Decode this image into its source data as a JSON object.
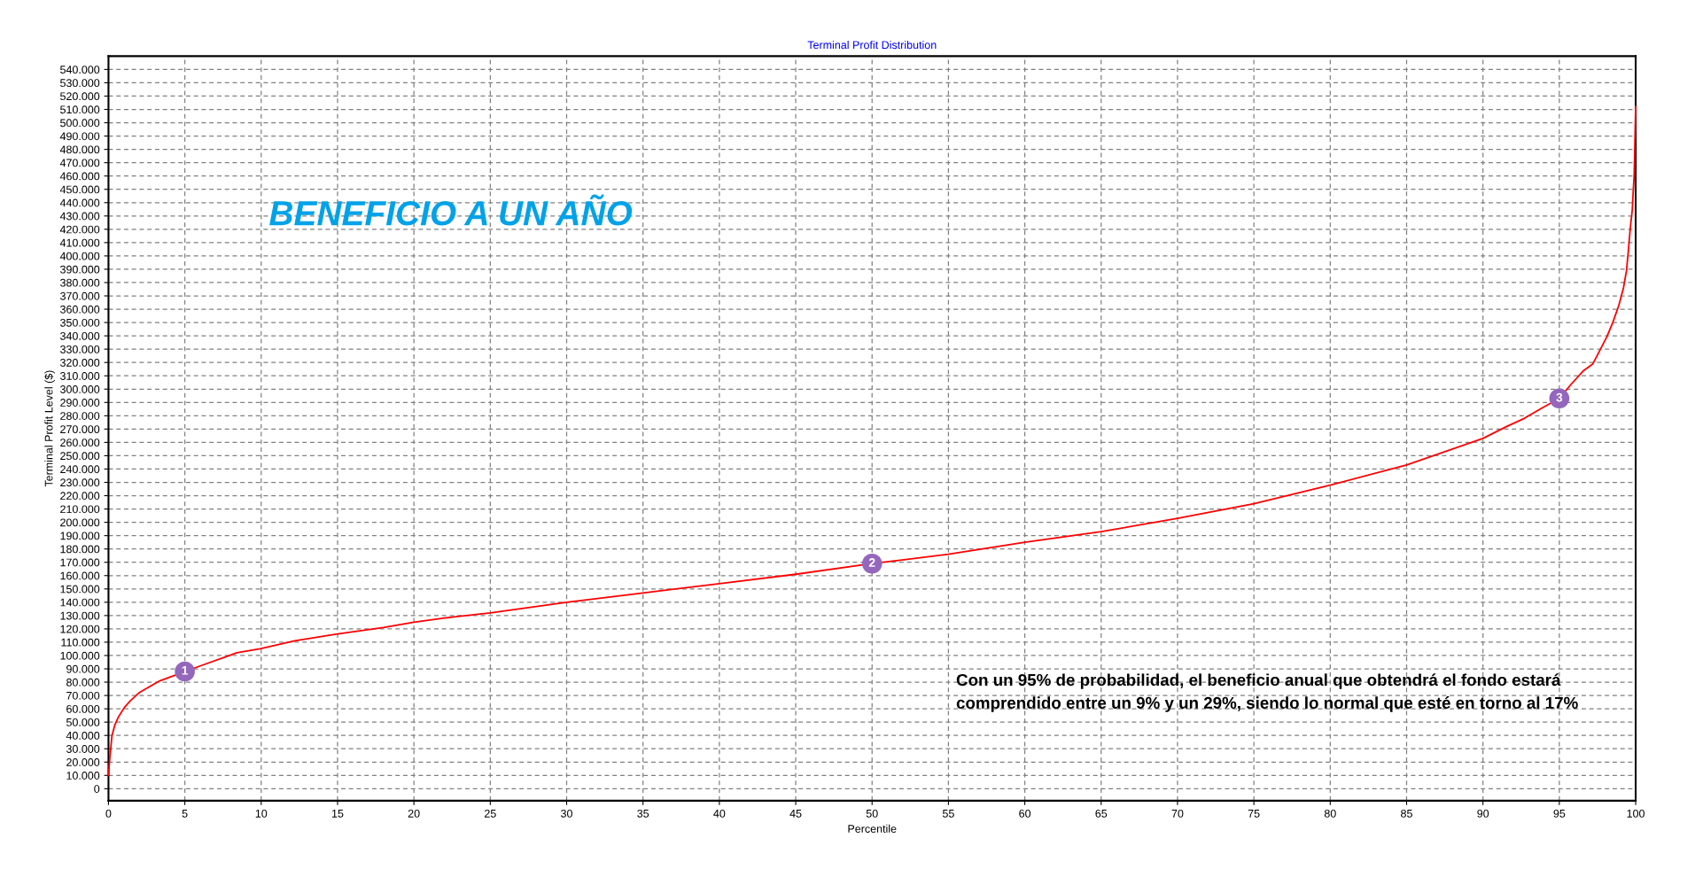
{
  "chart_data": {
    "type": "line",
    "title": "Terminal Profit Distribution",
    "xlabel": "Percentile",
    "ylabel": "Terminal Profit Level ($)",
    "series": [
      {
        "color": "#ff0000",
        "x": [
          0,
          0.08,
          0.23,
          0.42,
          0.66,
          1.04,
          1.43,
          2.0,
          2.6,
          3.36,
          4.3,
          5,
          6.45,
          8.4,
          9.92,
          12.2,
          14.9,
          18.0,
          20,
          21.9,
          25,
          30,
          35,
          40,
          45,
          50,
          55,
          60,
          65,
          70,
          75,
          80,
          85,
          90,
          91.56,
          92.7,
          93.9,
          95,
          95.8,
          96.6,
          97.2,
          97.65,
          98.1,
          98.5,
          98.9,
          99.2,
          99.4,
          99.53,
          99.64,
          99.78,
          99.84,
          99.9,
          100
        ],
        "values": [
          10000,
          22000,
          40000,
          48000,
          54000,
          61000,
          66000,
          72000,
          76000,
          81000,
          85000,
          88000,
          94000,
          102000,
          105000,
          111000,
          116000,
          121000,
          125000,
          128000,
          132000,
          140000,
          147000,
          154000,
          161000,
          169000,
          176000,
          185000,
          193000,
          203000,
          214000,
          228000,
          243000,
          263000,
          272000,
          278000,
          286000,
          293000,
          304000,
          314000,
          319000,
          329000,
          339000,
          350000,
          363000,
          376000,
          389000,
          405000,
          420000,
          435000,
          449000,
          460000,
          512000
        ]
      }
    ],
    "annotations": [
      "BENEFICIO A UN AÑO",
      "Con un 95% de probabilidad, el beneficio anual que obtendrá el fondo estará\ncomprendido entre un 9% y un 29%, siendo lo normal que esté en torno al 17%",
      {
        "text": "1",
        "x": 5,
        "y": 88000
      },
      {
        "text": "2",
        "x": 50,
        "y": 169000
      },
      {
        "text": "3",
        "x": 95,
        "y": 293000
      }
    ],
    "xlim": [
      0,
      100
    ],
    "xticks": [
      0,
      5,
      10,
      15,
      20,
      25,
      30,
      35,
      40,
      45,
      50,
      55,
      60,
      65,
      70,
      75,
      80,
      85,
      90,
      95,
      100
    ],
    "ylim": [
      -9000,
      550000
    ],
    "yticks": [
      {
        "value": 0,
        "label": "0"
      },
      {
        "value": 10000,
        "label": "10.000"
      },
      {
        "value": 20000,
        "label": "20.000"
      },
      {
        "value": 30000,
        "label": "30.000"
      },
      {
        "value": 40000,
        "label": "40.000"
      },
      {
        "value": 50000,
        "label": "50.000"
      },
      {
        "value": 60000,
        "label": "60.000"
      },
      {
        "value": 70000,
        "label": "70.000"
      },
      {
        "value": 80000,
        "label": "80.000"
      },
      {
        "value": 90000,
        "label": "90.000"
      },
      {
        "value": 100000,
        "label": "100.000"
      },
      {
        "value": 110000,
        "label": "110.000"
      },
      {
        "value": 120000,
        "label": "120.000"
      },
      {
        "value": 130000,
        "label": "130.000"
      },
      {
        "value": 140000,
        "label": "140.000"
      },
      {
        "value": 150000,
        "label": "150.000"
      },
      {
        "value": 160000,
        "label": "160.000"
      },
      {
        "value": 170000,
        "label": "170.000"
      },
      {
        "value": 180000,
        "label": "180.000"
      },
      {
        "value": 190000,
        "label": "190.000"
      },
      {
        "value": 200000,
        "label": "200.000"
      },
      {
        "value": 210000,
        "label": "210.000"
      },
      {
        "value": 220000,
        "label": "220.000"
      },
      {
        "value": 230000,
        "label": "230.000"
      },
      {
        "value": 240000,
        "label": "240.000"
      },
      {
        "value": 250000,
        "label": "250.000"
      },
      {
        "value": 260000,
        "label": "260.000"
      },
      {
        "value": 270000,
        "label": "270.000"
      },
      {
        "value": 280000,
        "label": "280.000"
      },
      {
        "value": 290000,
        "label": "290.000"
      },
      {
        "value": 300000,
        "label": "300.000"
      },
      {
        "value": 310000,
        "label": "310.000"
      },
      {
        "value": 320000,
        "label": "320.000"
      },
      {
        "value": 330000,
        "label": "330.000"
      },
      {
        "value": 340000,
        "label": "340.000"
      },
      {
        "value": 350000,
        "label": "350.000"
      },
      {
        "value": 360000,
        "label": "360.000"
      },
      {
        "value": 370000,
        "label": "370.000"
      },
      {
        "value": 380000,
        "label": "380.000"
      },
      {
        "value": 390000,
        "label": "390.000"
      },
      {
        "value": 400000,
        "label": "400.000"
      },
      {
        "value": 410000,
        "label": "410.000"
      },
      {
        "value": 420000,
        "label": "420.000"
      },
      {
        "value": 430000,
        "label": "430.000"
      },
      {
        "value": 440000,
        "label": "440.000"
      },
      {
        "value": 450000,
        "label": "450.000"
      },
      {
        "value": 460000,
        "label": "460.000"
      },
      {
        "value": 470000,
        "label": "470.000"
      },
      {
        "value": 480000,
        "label": "480.000"
      },
      {
        "value": 490000,
        "label": "490.000"
      },
      {
        "value": 500000,
        "label": "500.000"
      },
      {
        "value": 510000,
        "label": "510.000"
      },
      {
        "value": 520000,
        "label": "520.000"
      },
      {
        "value": 530000,
        "label": "530.000"
      },
      {
        "value": 540000,
        "label": "540.000"
      }
    ],
    "grid": true,
    "line_style": "solid"
  }
}
